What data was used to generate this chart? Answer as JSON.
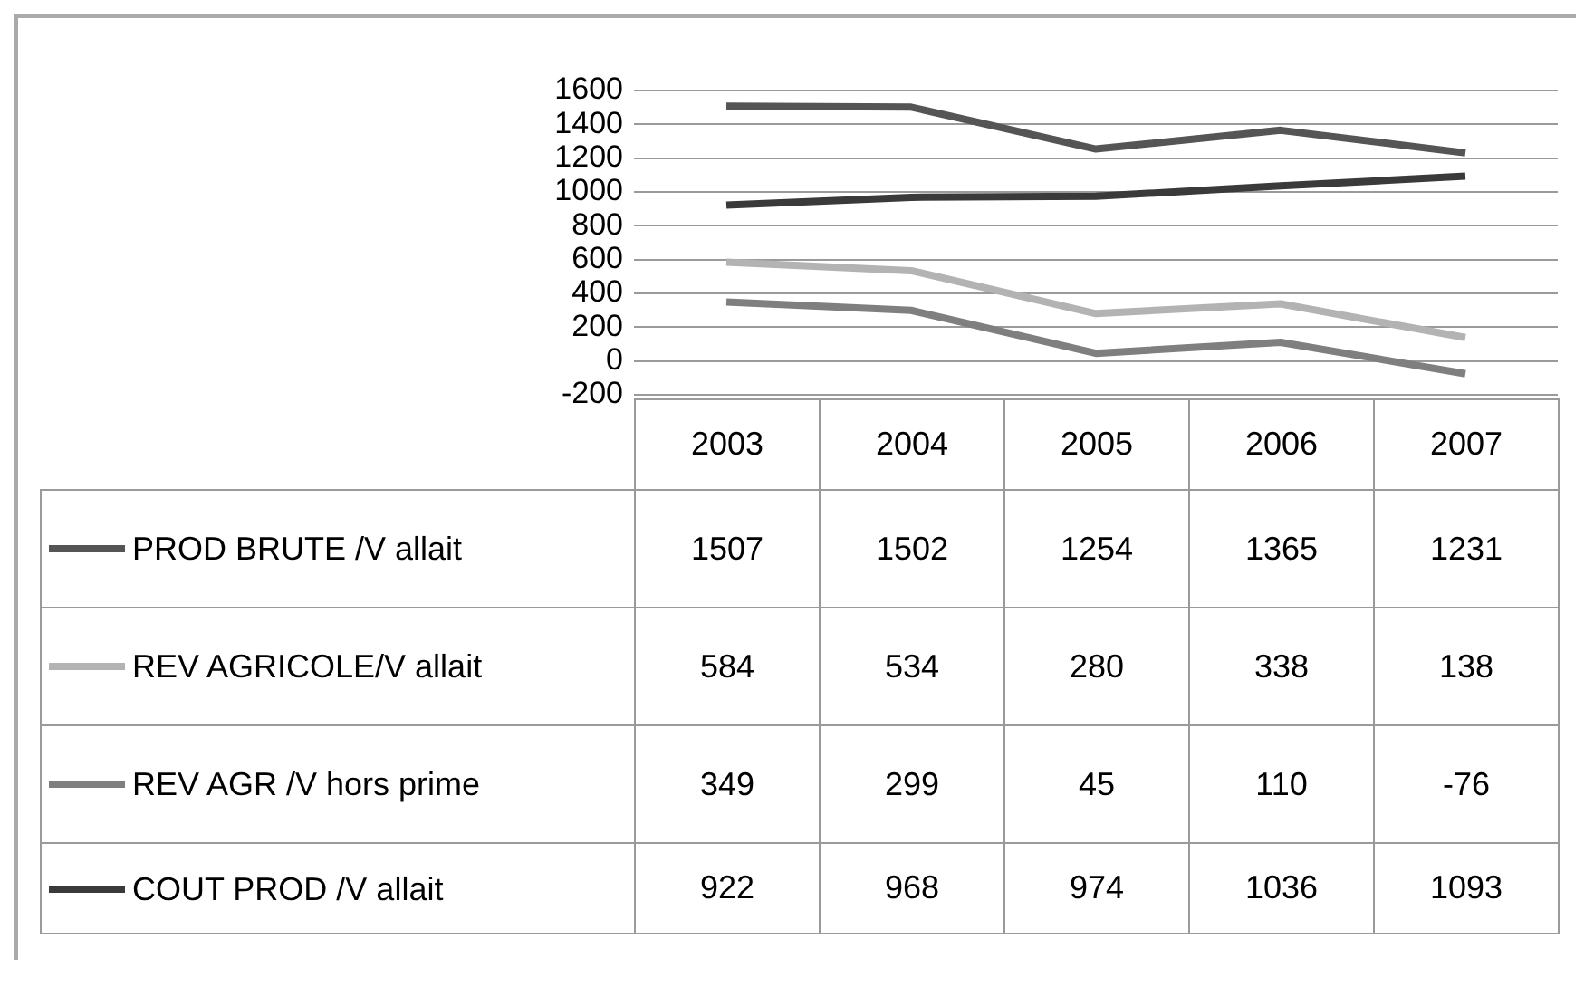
{
  "chart_data": {
    "type": "line",
    "categories": [
      "2003",
      "2004",
      "2005",
      "2006",
      "2007"
    ],
    "series": [
      {
        "name": "PROD BRUTE /V allait",
        "color": "#555555",
        "values": [
          1507,
          1502,
          1254,
          1365,
          1231
        ]
      },
      {
        "name": "REV AGRICOLE/V allait",
        "color": "#b3b3b3",
        "values": [
          584,
          534,
          280,
          338,
          138
        ]
      },
      {
        "name": "REV AGR /V hors prime",
        "color": "#7f7f7f",
        "values": [
          349,
          299,
          45,
          110,
          -76
        ]
      },
      {
        "name": "COUT PROD /V allait",
        "color": "#3a3a3a",
        "values": [
          922,
          968,
          974,
          1036,
          1093
        ]
      }
    ],
    "ylim": [
      -200,
      1600
    ],
    "yticks": [
      -200,
      0,
      200,
      400,
      600,
      800,
      1000,
      1200,
      1400,
      1600
    ],
    "grid": "y",
    "legend": "left",
    "data_labels": true,
    "marker": "none"
  }
}
